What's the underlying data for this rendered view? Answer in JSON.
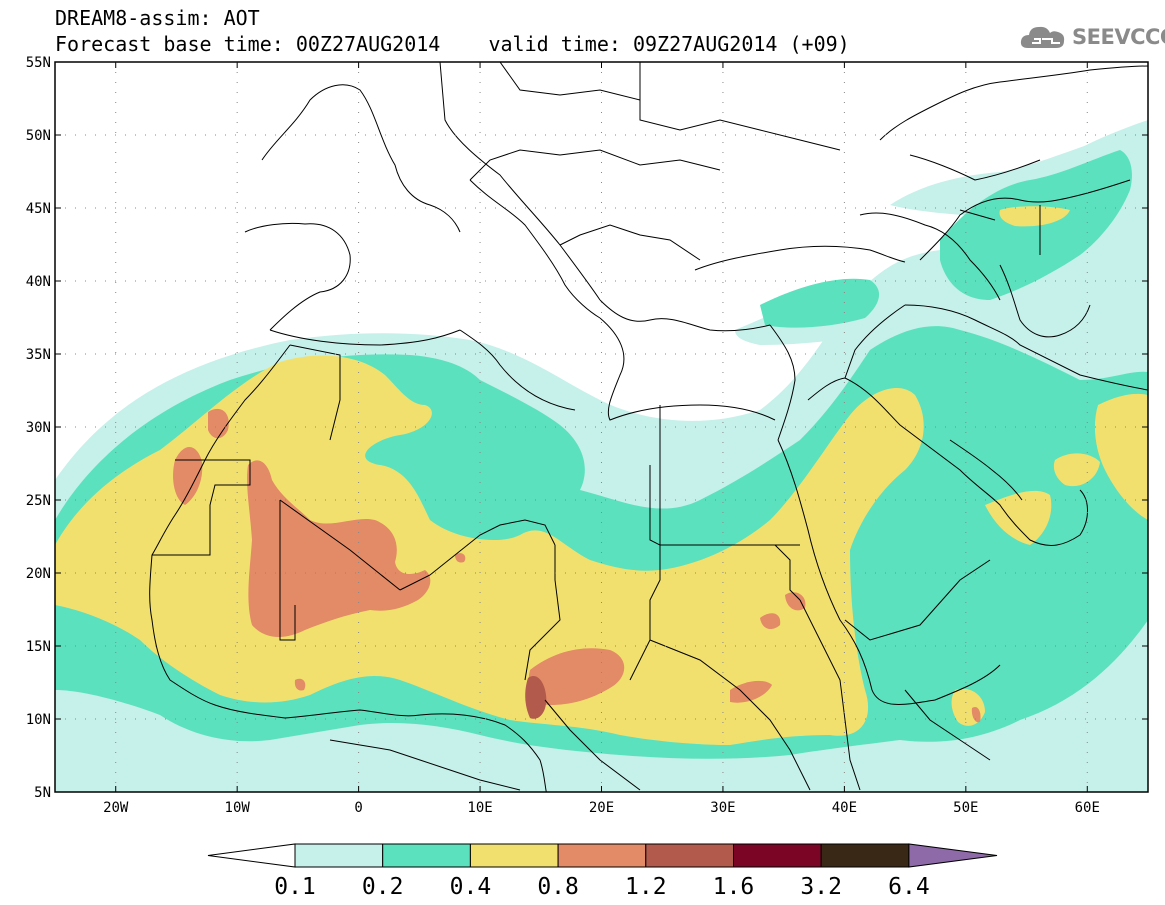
{
  "header": {
    "title_line1": "DREAM8-assim: AOT",
    "title_line2": "Forecast base time: 00Z27AUG2014    valid time: 09Z27AUG2014 (+09)",
    "logo_text": "SEEVCCC",
    "logo_icon": "cloud-icon"
  },
  "map": {
    "lon_range": [
      -25,
      65
    ],
    "lat_range": [
      5,
      55
    ],
    "lat_labels": [
      "55N",
      "50N",
      "45N",
      "40N",
      "35N",
      "30N",
      "25N",
      "20N",
      "15N",
      "10N",
      "5N"
    ],
    "lon_labels": [
      "20W",
      "10W",
      "0",
      "10E",
      "20E",
      "30E",
      "40E",
      "50E",
      "60E"
    ]
  },
  "colorbar": {
    "tick_labels": [
      "0.1",
      "0.2",
      "0.4",
      "0.8",
      "1.2",
      "1.6",
      "3.2",
      "6.4"
    ],
    "colors": [
      "#ffffff",
      "#c6f0ea",
      "#5be1bd",
      "#f2e06e",
      "#e38a66",
      "#b25a4c",
      "#7a0524",
      "#3a2817",
      "#8f6aa8"
    ]
  },
  "fields": {
    "colors": {
      "v01": "#c6f0ea",
      "v02": "#5be1bd",
      "v04": "#f2e06e",
      "v08": "#e38a66",
      "v12": "#b25a4c"
    }
  }
}
